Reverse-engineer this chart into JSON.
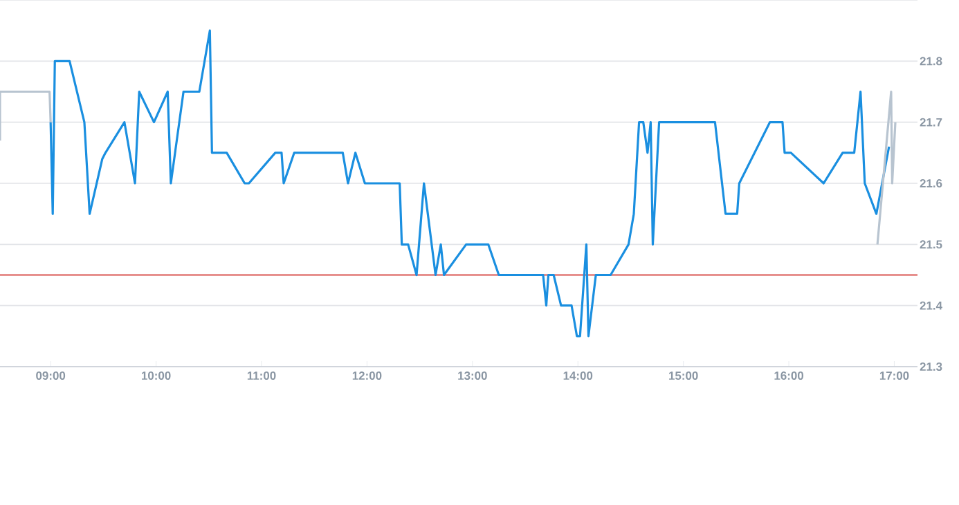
{
  "chart_data": {
    "type": "line",
    "xlim": [
      8.52,
      17.22
    ],
    "ylim": [
      21.3,
      21.9
    ],
    "xticks": [
      {
        "value": 9,
        "label": "09:00"
      },
      {
        "value": 10,
        "label": "10:00"
      },
      {
        "value": 11,
        "label": "11:00"
      },
      {
        "value": 12,
        "label": "12:00"
      },
      {
        "value": 13,
        "label": "13:00"
      },
      {
        "value": 14,
        "label": "14:00"
      },
      {
        "value": 15,
        "label": "15:00"
      },
      {
        "value": 16,
        "label": "16:00"
      },
      {
        "value": 17,
        "label": "17:00"
      }
    ],
    "yticks": [
      21.3,
      21.4,
      21.5,
      21.6,
      21.7,
      21.8,
      {
        "value": 21.9,
        "label": null
      }
    ],
    "grid": "y",
    "marker": "none",
    "ref_lines": [
      {
        "axis": "y",
        "value": 21.45,
        "color": "#d9534f"
      }
    ],
    "series": [
      {
        "color": "#b8c4d0",
        "x": [
          8.52,
          8.52,
          8.99,
          9.0
        ],
        "values": [
          21.67,
          21.75,
          21.75,
          21.7
        ]
      },
      {
        "color": "#1a8fe0",
        "x": [
          9.0,
          9.02,
          9.04,
          9.18,
          9.32,
          9.37,
          9.49,
          9.52,
          9.7,
          9.8,
          9.84,
          9.98,
          10.11,
          10.14,
          10.26,
          10.41,
          10.51,
          10.53,
          10.67,
          10.84,
          10.88,
          11.13,
          11.19,
          11.21,
          11.31,
          11.77,
          11.82,
          11.89,
          11.98,
          12.31,
          12.33,
          12.39,
          12.47,
          12.54,
          12.65,
          12.7,
          12.73,
          12.94,
          13.15,
          13.25,
          13.67,
          13.7,
          13.72,
          13.77,
          13.84,
          13.94,
          13.99,
          14.02,
          14.08,
          14.1,
          14.17,
          14.31,
          14.48,
          14.53,
          14.58,
          14.62,
          14.66,
          14.69,
          14.71,
          14.77,
          15.3,
          15.4,
          15.51,
          15.53,
          15.82,
          15.94,
          15.96,
          16.02,
          16.33,
          16.51,
          16.62,
          16.68,
          16.72,
          16.83,
          16.95
        ],
        "values": [
          21.7,
          21.55,
          21.8,
          21.8,
          21.7,
          21.55,
          21.64,
          21.65,
          21.7,
          21.6,
          21.75,
          21.7,
          21.75,
          21.6,
          21.75,
          21.75,
          21.85,
          21.65,
          21.65,
          21.6,
          21.6,
          21.65,
          21.65,
          21.6,
          21.65,
          21.65,
          21.6,
          21.65,
          21.6,
          21.6,
          21.5,
          21.5,
          21.45,
          21.6,
          21.45,
          21.5,
          21.45,
          21.5,
          21.5,
          21.45,
          21.45,
          21.4,
          21.45,
          21.45,
          21.4,
          21.4,
          21.35,
          21.35,
          21.5,
          21.35,
          21.45,
          21.45,
          21.5,
          21.55,
          21.7,
          21.7,
          21.65,
          21.7,
          21.5,
          21.7,
          21.7,
          21.55,
          21.55,
          21.6,
          21.7,
          21.7,
          21.65,
          21.65,
          21.6,
          21.65,
          21.65,
          21.75,
          21.6,
          21.55,
          21.66
        ]
      },
      {
        "color": "#b8c4d0",
        "x": [
          16.84,
          16.97,
          16.98,
          17.01
        ],
        "values": [
          21.5,
          21.75,
          21.6,
          21.7
        ]
      }
    ]
  }
}
